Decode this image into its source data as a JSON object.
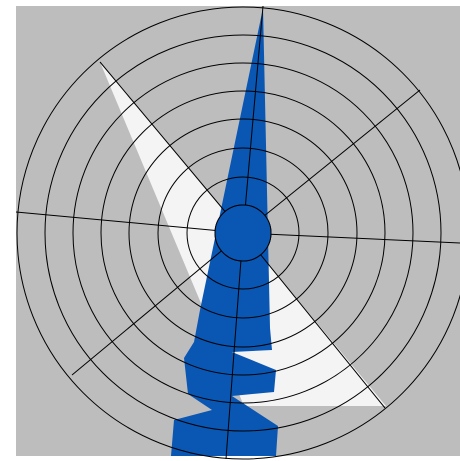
{
  "colors": {
    "page": "#ffffff",
    "backdrop": "#bdbdbd",
    "white_shape": "#f4f4f4",
    "blue_shape": "#0a56b3",
    "grid_line": "#000000"
  },
  "grid": {
    "ring_count": 8,
    "spoke_count": 10
  },
  "icons": {
    "white_shape": "white-triangle-shape",
    "blue_shape": "blue-flag-shape"
  }
}
